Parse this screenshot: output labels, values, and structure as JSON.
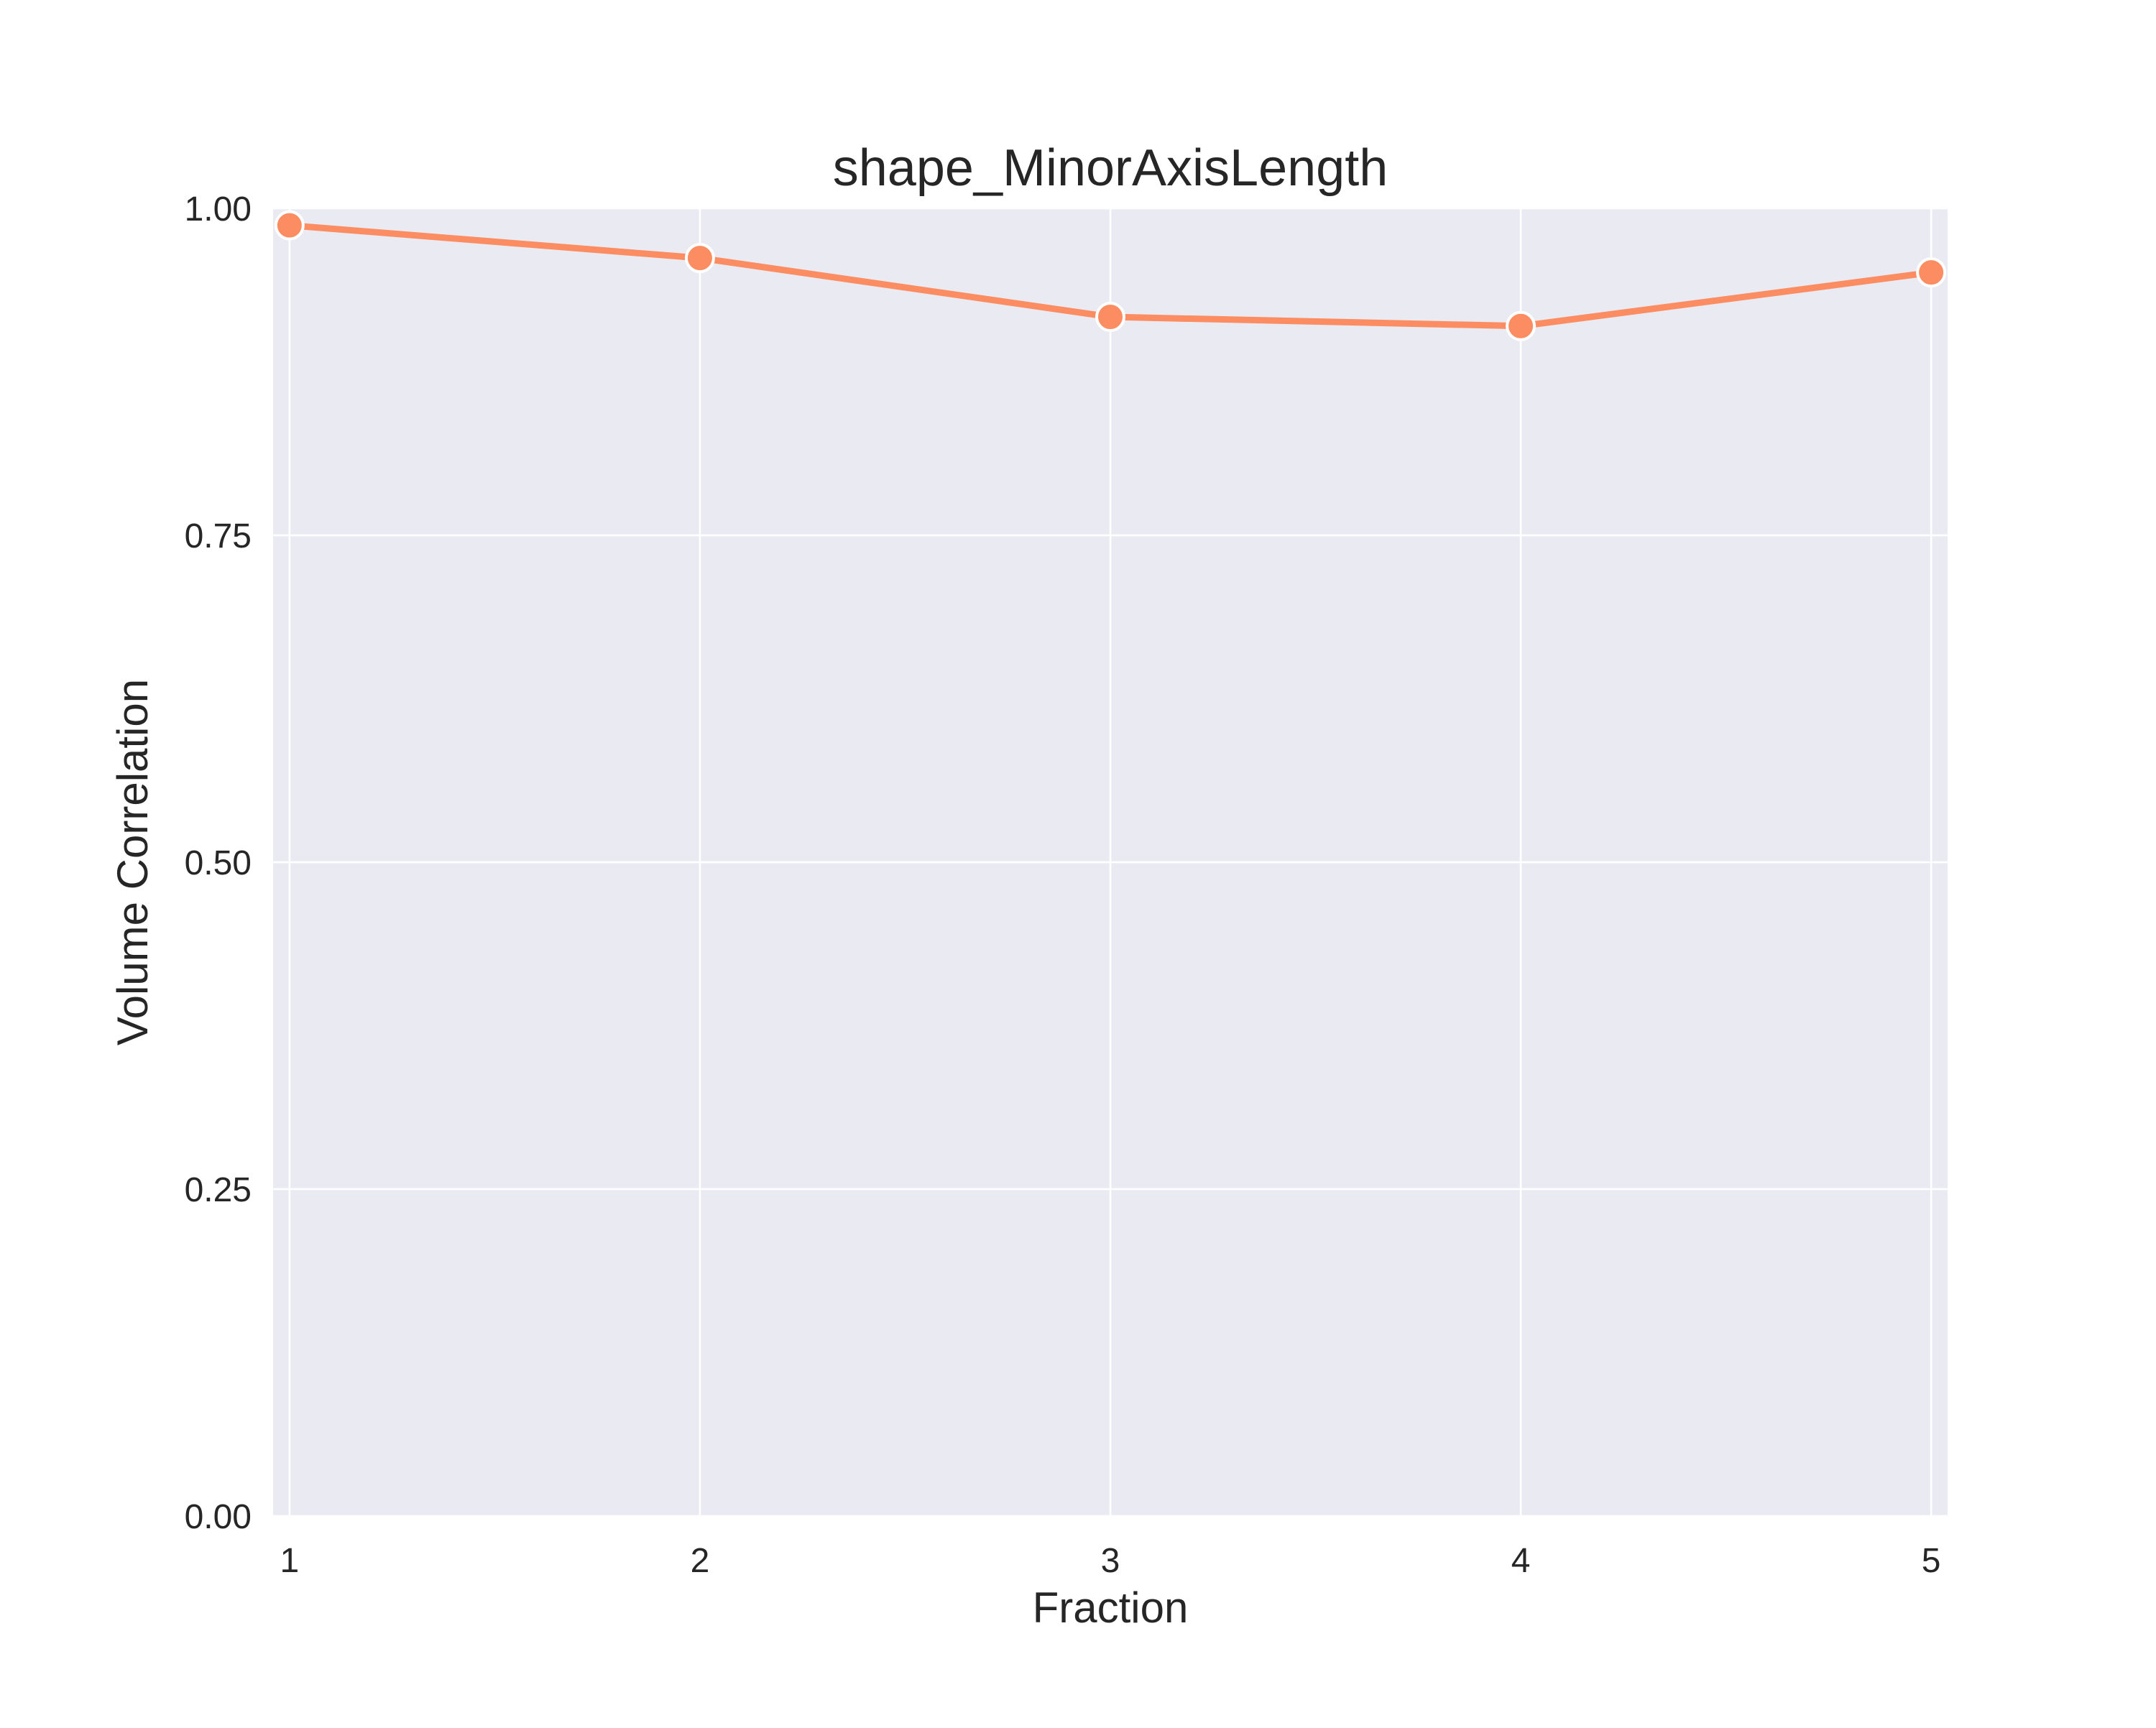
{
  "chart_data": {
    "type": "line",
    "title": "shape_MinorAxisLength",
    "xlabel": "Fraction",
    "ylabel": "Volume Correlation",
    "x": [
      1,
      2,
      3,
      4,
      5
    ],
    "xticks": [
      "1",
      "2",
      "3",
      "4",
      "5"
    ],
    "yticks": [
      "0.00",
      "0.25",
      "0.50",
      "0.75",
      "1.00"
    ],
    "xlim": [
      0.96,
      5.04
    ],
    "ylim": [
      0,
      1
    ],
    "grid": true,
    "series": [
      {
        "values": [
          0.987,
          0.962,
          0.917,
          0.91,
          0.951
        ],
        "color": "#fc8d62",
        "marker": "circle"
      }
    ]
  },
  "colors": {
    "plot_background": "#eaeaf2",
    "grid": "#ffffff",
    "line": "#fc8d62",
    "marker_edge": "#ffffff",
    "text": "#262626"
  }
}
